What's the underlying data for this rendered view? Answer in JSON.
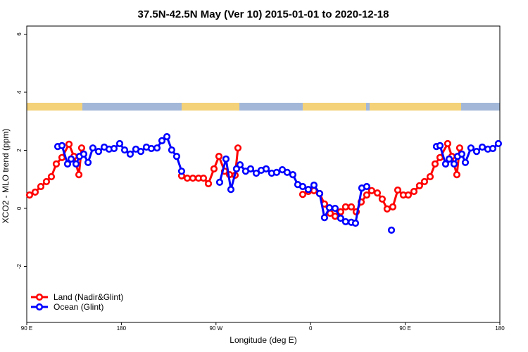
{
  "chart_data": {
    "type": "line",
    "title": "37.5N-42.5N May (Ver 10)   2015-01-01 to 2020-12-18",
    "x_label": "Longitude (deg E)",
    "y_label": "XCO2 - MLO trend (ppm)",
    "xlim": [
      90,
      540
    ],
    "xticks": [
      {
        "value": 90,
        "label": "90 E"
      },
      {
        "value": 180,
        "label": "180"
      },
      {
        "value": 270,
        "label": "90 W"
      },
      {
        "value": 360,
        "label": "0"
      },
      {
        "value": 450,
        "label": "90 E"
      },
      {
        "value": 540,
        "label": "180"
      }
    ],
    "ylim": [
      -3.93,
      6.28
    ],
    "yticks": [
      -2,
      0,
      2,
      4,
      6
    ],
    "legend": "bottom-left",
    "series": [
      {
        "name": "Land (Nadir&Glint)",
        "color": "#ff0000",
        "x": [
          92.7,
          98.0,
          103.4,
          108.7,
          113.4,
          118.1,
          123.5,
          130.2,
          134.9,
          139.6,
          142.2,
          190,
          237.3,
          242.7,
          248.0,
          253.4,
          258.1,
          262.8,
          268.1,
          272.8,
          278.2,
          282.9,
          288.2,
          290.9,
          320,
          352.5,
          357.8,
          363.2,
          368.6,
          373.2,
          378.6,
          383.3,
          388.6,
          393.3,
          398.7,
          403.4,
          408.1,
          413.4,
          418.1,
          423.5,
          428.1,
          432.8,
          438.2,
          442.9,
          448.2,
          452.9,
          458.3,
          463.6,
          468.3,
          473.7,
          478.4,
          483.1,
          490.4,
          494.4,
          499.1,
          501.8
        ],
        "values": [
          0.46,
          0.56,
          0.75,
          0.92,
          1.09,
          1.53,
          1.75,
          2.21,
          1.79,
          1.16,
          2.08,
          null,
          1.12,
          1.04,
          1.04,
          1.04,
          1.04,
          0.85,
          1.36,
          1.79,
          1.28,
          1.16,
          1.14,
          2.08,
          null,
          0.48,
          0.58,
          0.61,
          0.51,
          0.15,
          -0.17,
          -0.27,
          -0.12,
          0.05,
          0.05,
          -0.12,
          0.22,
          0.46,
          0.61,
          0.53,
          0.32,
          -0.02,
          0.05,
          0.63,
          0.46,
          0.46,
          0.58,
          0.78,
          0.92,
          1.09,
          1.53,
          1.75,
          2.23,
          1.79,
          1.16,
          2.08
        ]
      },
      {
        "name": "Ocean (Glint)",
        "color": "#0000ff",
        "x": [
          119.5,
          123.5,
          128.8,
          132.2,
          136.9,
          140.2,
          144.2,
          148.3,
          152.9,
          158.3,
          163.7,
          168.3,
          173.0,
          178.4,
          183.1,
          188.4,
          193.8,
          198.5,
          203.8,
          208.5,
          213.9,
          218.6,
          223.3,
          227.9,
          232.6,
          237.3,
          255.4,
          273.5,
          279.5,
          284.2,
          289.5,
          292.9,
          298.2,
          302.9,
          308.3,
          313.0,
          317.7,
          323.0,
          327.7,
          333.1,
          337.7,
          343.1,
          347.8,
          352.5,
          357.8,
          363.2,
          368.6,
          373.2,
          377.9,
          383.3,
          388.6,
          393.3,
          398.7,
          402.7,
          408.7,
          413.4,
          426.1,
          436.9,
          459.6,
          479.7,
          483.1,
          488.4,
          491.8,
          496.5,
          499.8,
          503.8,
          507.2,
          512.5,
          517.9,
          523.3,
          528.6,
          533.3,
          538.6
        ],
        "values": [
          2.13,
          2.16,
          1.53,
          1.7,
          1.53,
          1.79,
          1.87,
          1.58,
          2.08,
          1.96,
          2.11,
          2.04,
          2.06,
          2.23,
          2.01,
          1.87,
          2.04,
          1.96,
          2.11,
          2.06,
          2.08,
          2.33,
          2.47,
          2.01,
          1.79,
          1.28,
          null,
          0.9,
          1.7,
          0.65,
          1.36,
          1.5,
          1.28,
          1.36,
          1.21,
          1.31,
          1.36,
          1.21,
          1.24,
          1.33,
          1.24,
          1.16,
          0.82,
          0.75,
          0.65,
          0.8,
          0.51,
          -0.32,
          0.02,
          0.0,
          -0.34,
          -0.46,
          -0.48,
          -0.51,
          0.7,
          0.75,
          null,
          -0.75,
          null,
          2.13,
          2.16,
          1.53,
          1.7,
          1.53,
          1.79,
          1.87,
          1.58,
          2.08,
          1.96,
          2.11,
          2.04,
          2.06,
          2.23
        ]
      }
    ]
  }
}
